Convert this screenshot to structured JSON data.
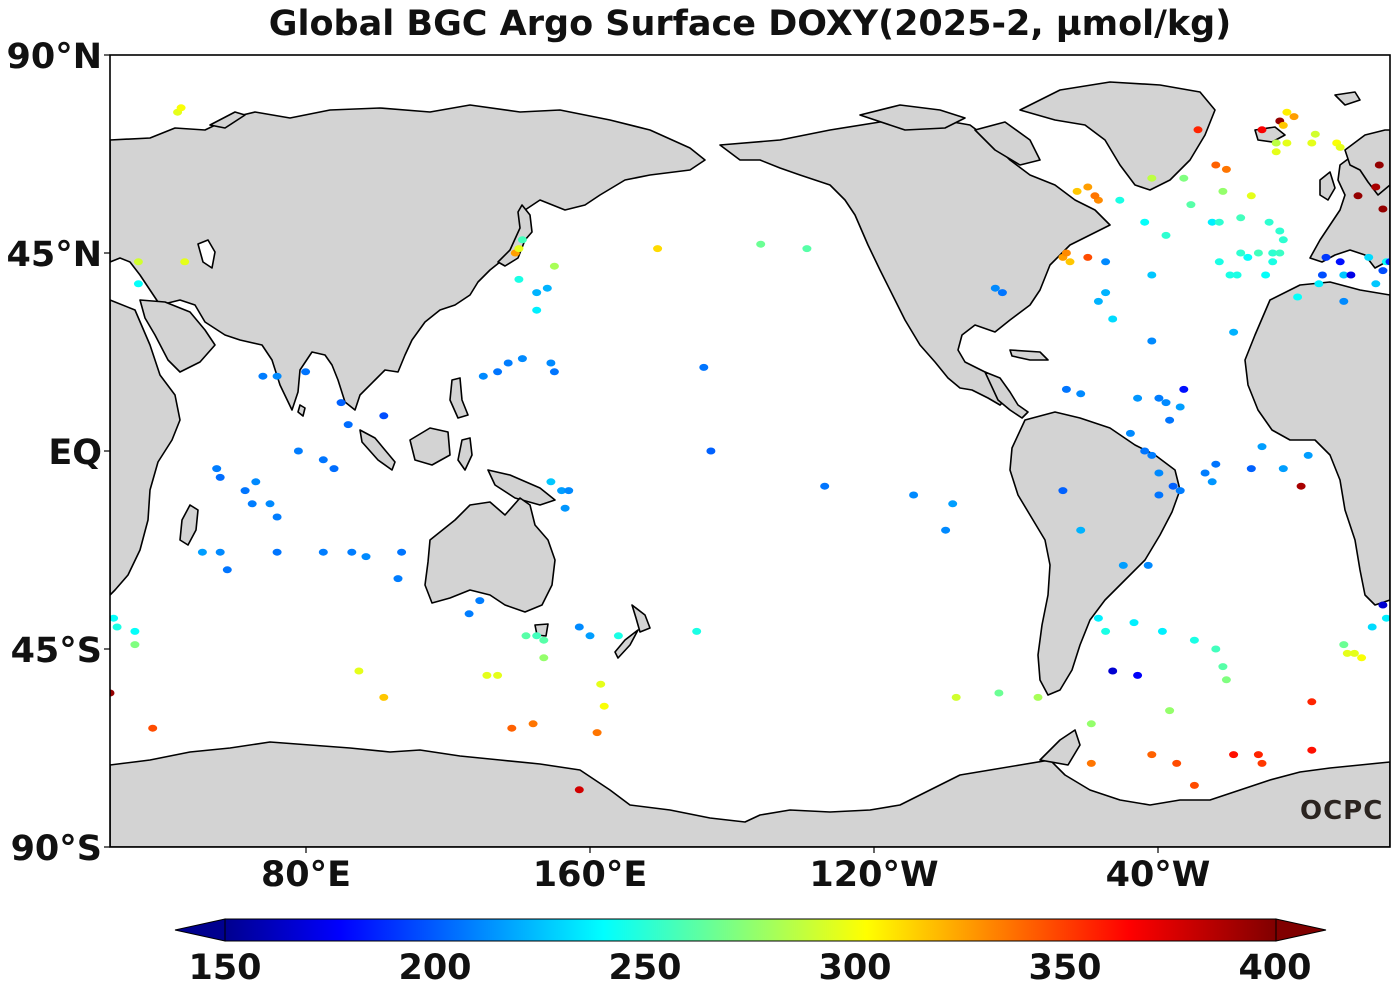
{
  "title": "Global BGC Argo Surface DOXY(2025-2, µmol/kg)",
  "lat_ticks": [
    "90°N",
    "45°N",
    "EQ",
    "45°S",
    "90°S"
  ],
  "lon_ticks": [
    "80°E",
    "160°E",
    "120°W",
    "40°W"
  ],
  "colorbar": {
    "min": 150,
    "max": 400,
    "ticks": [
      "150",
      "200",
      "250",
      "300",
      "350",
      "400"
    ],
    "extend": "both",
    "colormap": "jet"
  },
  "logo": "OCPC",
  "colors": {
    "land": "#d3d3d3",
    "ocean": "#ffffff",
    "coast": "#000000"
  },
  "map_extent": {
    "lon_min": 25,
    "lon_max": 385,
    "lat_min": -90,
    "lat_max": 90
  },
  "chart_data": {
    "type": "scatter",
    "xlabel": "",
    "ylabel": "",
    "points": [
      [
        44,
        77,
        300
      ],
      [
        45,
        78,
        305
      ],
      [
        33,
        43,
        295
      ],
      [
        46,
        43,
        300
      ],
      [
        33,
        38,
        245
      ],
      [
        72,
        17,
        215
      ],
      [
        80,
        18,
        210
      ],
      [
        68,
        17,
        212
      ],
      [
        90,
        11,
        205
      ],
      [
        92,
        6,
        208
      ],
      [
        102,
        8,
        200
      ],
      [
        78,
        0,
        212
      ],
      [
        85,
        -2,
        210
      ],
      [
        88,
        -4,
        208
      ],
      [
        63,
        -9,
        210
      ],
      [
        65,
        -12,
        212
      ],
      [
        66,
        -7,
        215
      ],
      [
        70,
        -12,
        215
      ],
      [
        72,
        -15,
        212
      ],
      [
        55,
        -4,
        212
      ],
      [
        56,
        -6,
        208
      ],
      [
        51,
        -23,
        220
      ],
      [
        56,
        -23,
        215
      ],
      [
        58,
        -27,
        210
      ],
      [
        72,
        -23,
        210
      ],
      [
        85,
        -23,
        212
      ],
      [
        93,
        -23,
        212
      ],
      [
        97,
        -24,
        215
      ],
      [
        107,
        -23,
        210
      ],
      [
        106,
        -29,
        212
      ],
      [
        26,
        -38,
        245
      ],
      [
        27,
        -40,
        250
      ],
      [
        32,
        -41,
        245
      ],
      [
        32,
        -44,
        275
      ],
      [
        25,
        -55,
        395
      ],
      [
        37,
        -63,
        350
      ],
      [
        95,
        -50,
        300
      ],
      [
        102,
        -56,
        320
      ],
      [
        131,
        -51,
        300
      ],
      [
        134,
        -51,
        300
      ],
      [
        142,
        -42,
        265
      ],
      [
        145,
        -42,
        260
      ],
      [
        147,
        -43,
        265
      ],
      [
        147,
        -47,
        280
      ],
      [
        138,
        -63,
        345
      ],
      [
        144,
        -62,
        340
      ],
      [
        129,
        -34,
        212
      ],
      [
        126,
        -37,
        212
      ],
      [
        157,
        -40,
        215
      ],
      [
        160,
        -42,
        220
      ],
      [
        168,
        -42,
        250
      ],
      [
        190,
        -41,
        250
      ],
      [
        163,
        -53,
        300
      ],
      [
        164,
        -58,
        305
      ],
      [
        162,
        -64,
        340
      ],
      [
        157,
        -77,
        380
      ],
      [
        139,
        45,
        330
      ],
      [
        141,
        48,
        260
      ],
      [
        140,
        46,
        300
      ],
      [
        140,
        39,
        250
      ],
      [
        145,
        36,
        225
      ],
      [
        148,
        37,
        225
      ],
      [
        145,
        32,
        240
      ],
      [
        150,
        42,
        285
      ],
      [
        130,
        17,
        215
      ],
      [
        134,
        18,
        210
      ],
      [
        137,
        20,
        212
      ],
      [
        141,
        21,
        215
      ],
      [
        149,
        20,
        215
      ],
      [
        150,
        18,
        210
      ],
      [
        192,
        19,
        210
      ],
      [
        194,
        0,
        205
      ],
      [
        179,
        46,
        315
      ],
      [
        221,
        46,
        265
      ],
      [
        208,
        47,
        270
      ],
      [
        152,
        -9,
        220
      ],
      [
        154,
        -9,
        215
      ],
      [
        153,
        -13,
        218
      ],
      [
        149,
        -7,
        230
      ],
      [
        226,
        -8,
        210
      ],
      [
        251,
        -10,
        215
      ],
      [
        262,
        -12,
        220
      ],
      [
        260,
        -18,
        215
      ],
      [
        263,
        -56,
        295
      ],
      [
        275,
        -55,
        270
      ],
      [
        274,
        37,
        215
      ],
      [
        276,
        36,
        210
      ],
      [
        305,
        43,
        215
      ],
      [
        303,
        34,
        225
      ],
      [
        305,
        36,
        225
      ],
      [
        318,
        40,
        230
      ],
      [
        307,
        30,
        235
      ],
      [
        318,
        25,
        215
      ],
      [
        340,
        40,
        250
      ],
      [
        337,
        43,
        250
      ],
      [
        350,
        40,
        245
      ],
      [
        335,
        52,
        240
      ],
      [
        322,
        49,
        255
      ],
      [
        318,
        62,
        290
      ],
      [
        309,
        57,
        250
      ],
      [
        316,
        52,
        245
      ],
      [
        297,
        59,
        320
      ],
      [
        300,
        60,
        330
      ],
      [
        303,
        57,
        335
      ],
      [
        302,
        58,
        340
      ],
      [
        327,
        62,
        275
      ],
      [
        338,
        59,
        280
      ],
      [
        329,
        56,
        265
      ],
      [
        346,
        58,
        300
      ],
      [
        337,
        52,
        255
      ],
      [
        343,
        53,
        260
      ],
      [
        336,
        65,
        345
      ],
      [
        331,
        73,
        360
      ],
      [
        339,
        64,
        340
      ],
      [
        349,
        73,
        370
      ],
      [
        353,
        70,
        290
      ],
      [
        356,
        70,
        300
      ],
      [
        354,
        75,
        395
      ],
      [
        358,
        76,
        330
      ],
      [
        353,
        68,
        300
      ],
      [
        355,
        74,
        320
      ],
      [
        356,
        77,
        310
      ],
      [
        363,
        70,
        300
      ],
      [
        364,
        72,
        295
      ],
      [
        370,
        70,
        305
      ],
      [
        371,
        69,
        300
      ],
      [
        382,
        65,
        395
      ],
      [
        381,
        60,
        390
      ],
      [
        376,
        58,
        395
      ],
      [
        383,
        55,
        395
      ],
      [
        388,
        55,
        390
      ],
      [
        384,
        43,
        245
      ],
      [
        386,
        40,
        230
      ],
      [
        379,
        44,
        235
      ],
      [
        381,
        38,
        230
      ],
      [
        372,
        40,
        230
      ],
      [
        365,
        38,
        240
      ],
      [
        359,
        35,
        245
      ],
      [
        345,
        44,
        245
      ],
      [
        348,
        45,
        260
      ],
      [
        342,
        40,
        250
      ],
      [
        343,
        45,
        255
      ],
      [
        352,
        43,
        250
      ],
      [
        352,
        45,
        255
      ],
      [
        354,
        45,
        258
      ],
      [
        355,
        48,
        255
      ],
      [
        354,
        50,
        255
      ],
      [
        351,
        52,
        255
      ],
      [
        341,
        27,
        225
      ],
      [
        366,
        40,
        200
      ],
      [
        367,
        44,
        195
      ],
      [
        371,
        43,
        185
      ],
      [
        374,
        40,
        175
      ],
      [
        385,
        43,
        190
      ],
      [
        383,
        41,
        200
      ],
      [
        372,
        34,
        215
      ],
      [
        293,
        44,
        330
      ],
      [
        295,
        43,
        320
      ],
      [
        294,
        45,
        335
      ],
      [
        300,
        44,
        350
      ],
      [
        294,
        14,
        210
      ],
      [
        298,
        13,
        215
      ],
      [
        314,
        12,
        218
      ],
      [
        320,
        12,
        212
      ],
      [
        322,
        11,
        215
      ],
      [
        326,
        10,
        220
      ],
      [
        327,
        14,
        185
      ],
      [
        323,
        7,
        210
      ],
      [
        312,
        4,
        215
      ],
      [
        316,
        0,
        210
      ],
      [
        318,
        -1,
        212
      ],
      [
        320,
        -5,
        215
      ],
      [
        320,
        -10,
        210
      ],
      [
        324,
        -8,
        205
      ],
      [
        326,
        -9,
        212
      ],
      [
        336,
        -3,
        210
      ],
      [
        333,
        -5,
        212
      ],
      [
        335,
        -7,
        218
      ],
      [
        346,
        -4,
        205
      ],
      [
        355,
        -4,
        220
      ],
      [
        360,
        -8,
        390
      ],
      [
        362,
        -1,
        220
      ],
      [
        349,
        1,
        220
      ],
      [
        317,
        -26,
        215
      ],
      [
        310,
        -26,
        220
      ],
      [
        293,
        -9,
        205
      ],
      [
        298,
        -18,
        225
      ],
      [
        303,
        -38,
        240
      ],
      [
        305,
        -41,
        250
      ],
      [
        313,
        -39,
        240
      ],
      [
        321,
        -41,
        240
      ],
      [
        330,
        -43,
        250
      ],
      [
        336,
        -45,
        260
      ],
      [
        338,
        -49,
        265
      ],
      [
        339,
        -52,
        275
      ],
      [
        323,
        -59,
        280
      ],
      [
        301,
        -71,
        340
      ],
      [
        318,
        -69,
        345
      ],
      [
        325,
        -71,
        350
      ],
      [
        330,
        -76,
        350
      ],
      [
        341,
        -69,
        365
      ],
      [
        348,
        -69,
        360
      ],
      [
        349,
        -71,
        355
      ],
      [
        363,
        -57,
        360
      ],
      [
        363,
        -68,
        365
      ],
      [
        372,
        -44,
        270
      ],
      [
        373,
        -46,
        300
      ],
      [
        375,
        -46,
        300
      ],
      [
        377,
        -47,
        305
      ],
      [
        380,
        -40,
        235
      ],
      [
        383,
        -35,
        170
      ],
      [
        384,
        -38,
        240
      ],
      [
        314,
        -51,
        180
      ],
      [
        307,
        -50,
        170
      ],
      [
        301,
        -62,
        280
      ],
      [
        286,
        -56,
        285
      ]
    ]
  }
}
